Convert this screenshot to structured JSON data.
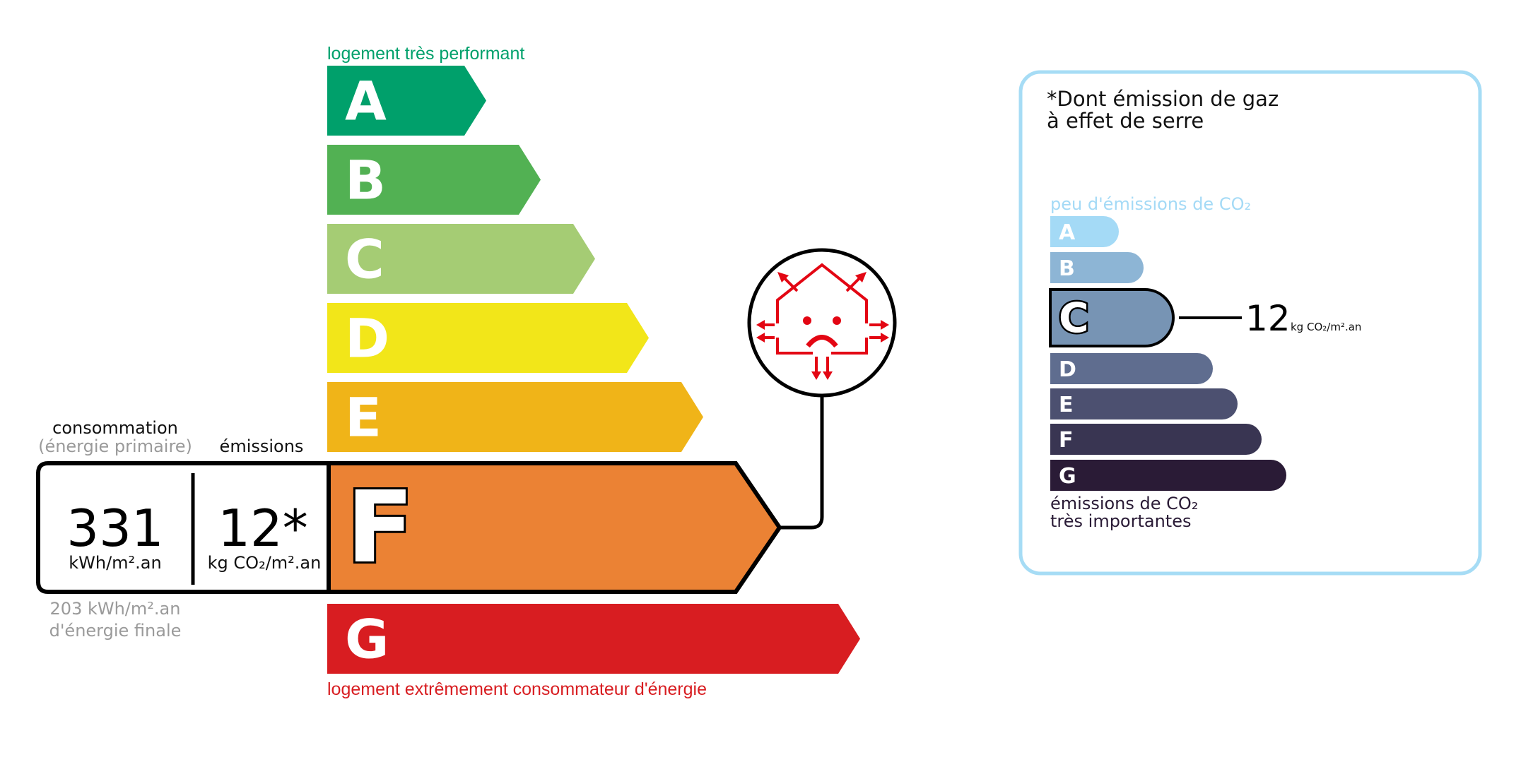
{
  "energy": {
    "top_label": "logement très performant",
    "bottom_label": "logement extrêmement consommateur d'énergie",
    "classes": [
      {
        "letter": "A",
        "color": "#00a06b"
      },
      {
        "letter": "B",
        "color": "#52b153"
      },
      {
        "letter": "C",
        "color": "#a5cc74"
      },
      {
        "letter": "D",
        "color": "#f2e619"
      },
      {
        "letter": "E",
        "color": "#f0b418"
      },
      {
        "letter": "F",
        "color": "#eb8234"
      },
      {
        "letter": "G",
        "color": "#d81d21"
      }
    ],
    "current_class": "F",
    "consumption_label": "consommation",
    "consumption_sublabel": "(énergie primaire)",
    "emissions_label": "émissions",
    "consumption_value": "331",
    "consumption_unit": "kWh/m².an",
    "emissions_value": "12*",
    "emissions_unit": "kg CO₂/m².an",
    "final_energy_value": "203 kWh/m².an",
    "final_energy_label": "d'énergie finale",
    "icon": "house-heat-loss-sad-icon"
  },
  "ghg": {
    "title_line1": "*Dont émission de gaz",
    "title_line2": "à effet de serre",
    "top_label": "peu d'émissions de CO₂",
    "bottom_label_line1": "émissions de CO₂",
    "bottom_label_line2": "très importantes",
    "classes": [
      {
        "letter": "A",
        "color": "#a4daf6"
      },
      {
        "letter": "B",
        "color": "#8db5d5"
      },
      {
        "letter": "C",
        "color": "#7794b4"
      },
      {
        "letter": "D",
        "color": "#5f6d8f"
      },
      {
        "letter": "E",
        "color": "#4c5070"
      },
      {
        "letter": "F",
        "color": "#393552"
      },
      {
        "letter": "G",
        "color": "#2a1b36"
      }
    ],
    "current_class": "C",
    "value": "12",
    "unit": "kg CO₂/m².an",
    "border_color": "#a6dcf5"
  }
}
